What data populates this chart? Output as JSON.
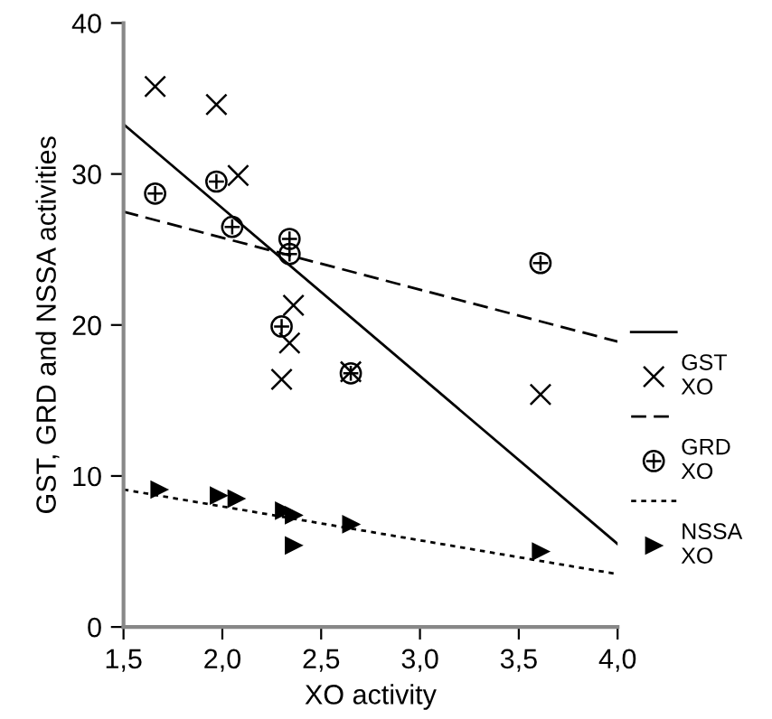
{
  "chart_data": {
    "type": "scatter",
    "xlabel": "XO activity",
    "ylabel": "GST, GRD and NSSA activities",
    "xlim": [
      1.5,
      4.0
    ],
    "ylim": [
      0,
      40
    ],
    "xticks": [
      {
        "value": 1.5,
        "label": "1,5"
      },
      {
        "value": 2.0,
        "label": "2,0"
      },
      {
        "value": 2.5,
        "label": "2,5"
      },
      {
        "value": 3.0,
        "label": "3,0"
      },
      {
        "value": 3.5,
        "label": "3,5"
      },
      {
        "value": 4.0,
        "label": "4,0"
      }
    ],
    "yticks": [
      0,
      10,
      20,
      30,
      40
    ],
    "grid": false,
    "legend": "right",
    "series": [
      {
        "name": "GST\nXO",
        "marker": "cross",
        "color": "#000000",
        "x": [
          1.66,
          1.97,
          2.08,
          2.36,
          2.34,
          2.3,
          3.61,
          2.65
        ],
        "values": [
          35.8,
          34.6,
          29.9,
          21.3,
          18.8,
          16.4,
          15.4,
          16.9
        ]
      },
      {
        "type": "line",
        "line_style": "solid",
        "color": "#000000",
        "x": [
          1.5,
          4.0
        ],
        "values": [
          33.3,
          5.5
        ]
      },
      {
        "name": "GRD\nXO",
        "color": "#000000",
        "x": [
          1.66,
          1.97,
          2.05,
          2.34,
          2.34,
          2.3,
          2.65,
          3.61
        ],
        "values": [
          28.7,
          29.5,
          26.5,
          25.7,
          24.7,
          19.9,
          16.8,
          24.1
        ]
      },
      {
        "type": "line",
        "line_style": "dashed",
        "color": "#000000",
        "x": [
          1.5,
          4.0
        ],
        "values": [
          27.5,
          18.9
        ]
      },
      {
        "name": "NSSA\nXO",
        "marker": "triangle",
        "color": "#000000",
        "x": [
          1.68,
          1.98,
          2.07,
          2.31,
          2.36,
          2.36,
          2.65,
          3.61
        ],
        "values": [
          9.1,
          8.7,
          8.5,
          7.7,
          7.4,
          5.4,
          6.8,
          5.0
        ]
      },
      {
        "type": "line",
        "line_style": "dotted",
        "color": "#000000",
        "x": [
          1.5,
          4.0
        ],
        "values": [
          9.1,
          3.5
        ]
      }
    ]
  }
}
